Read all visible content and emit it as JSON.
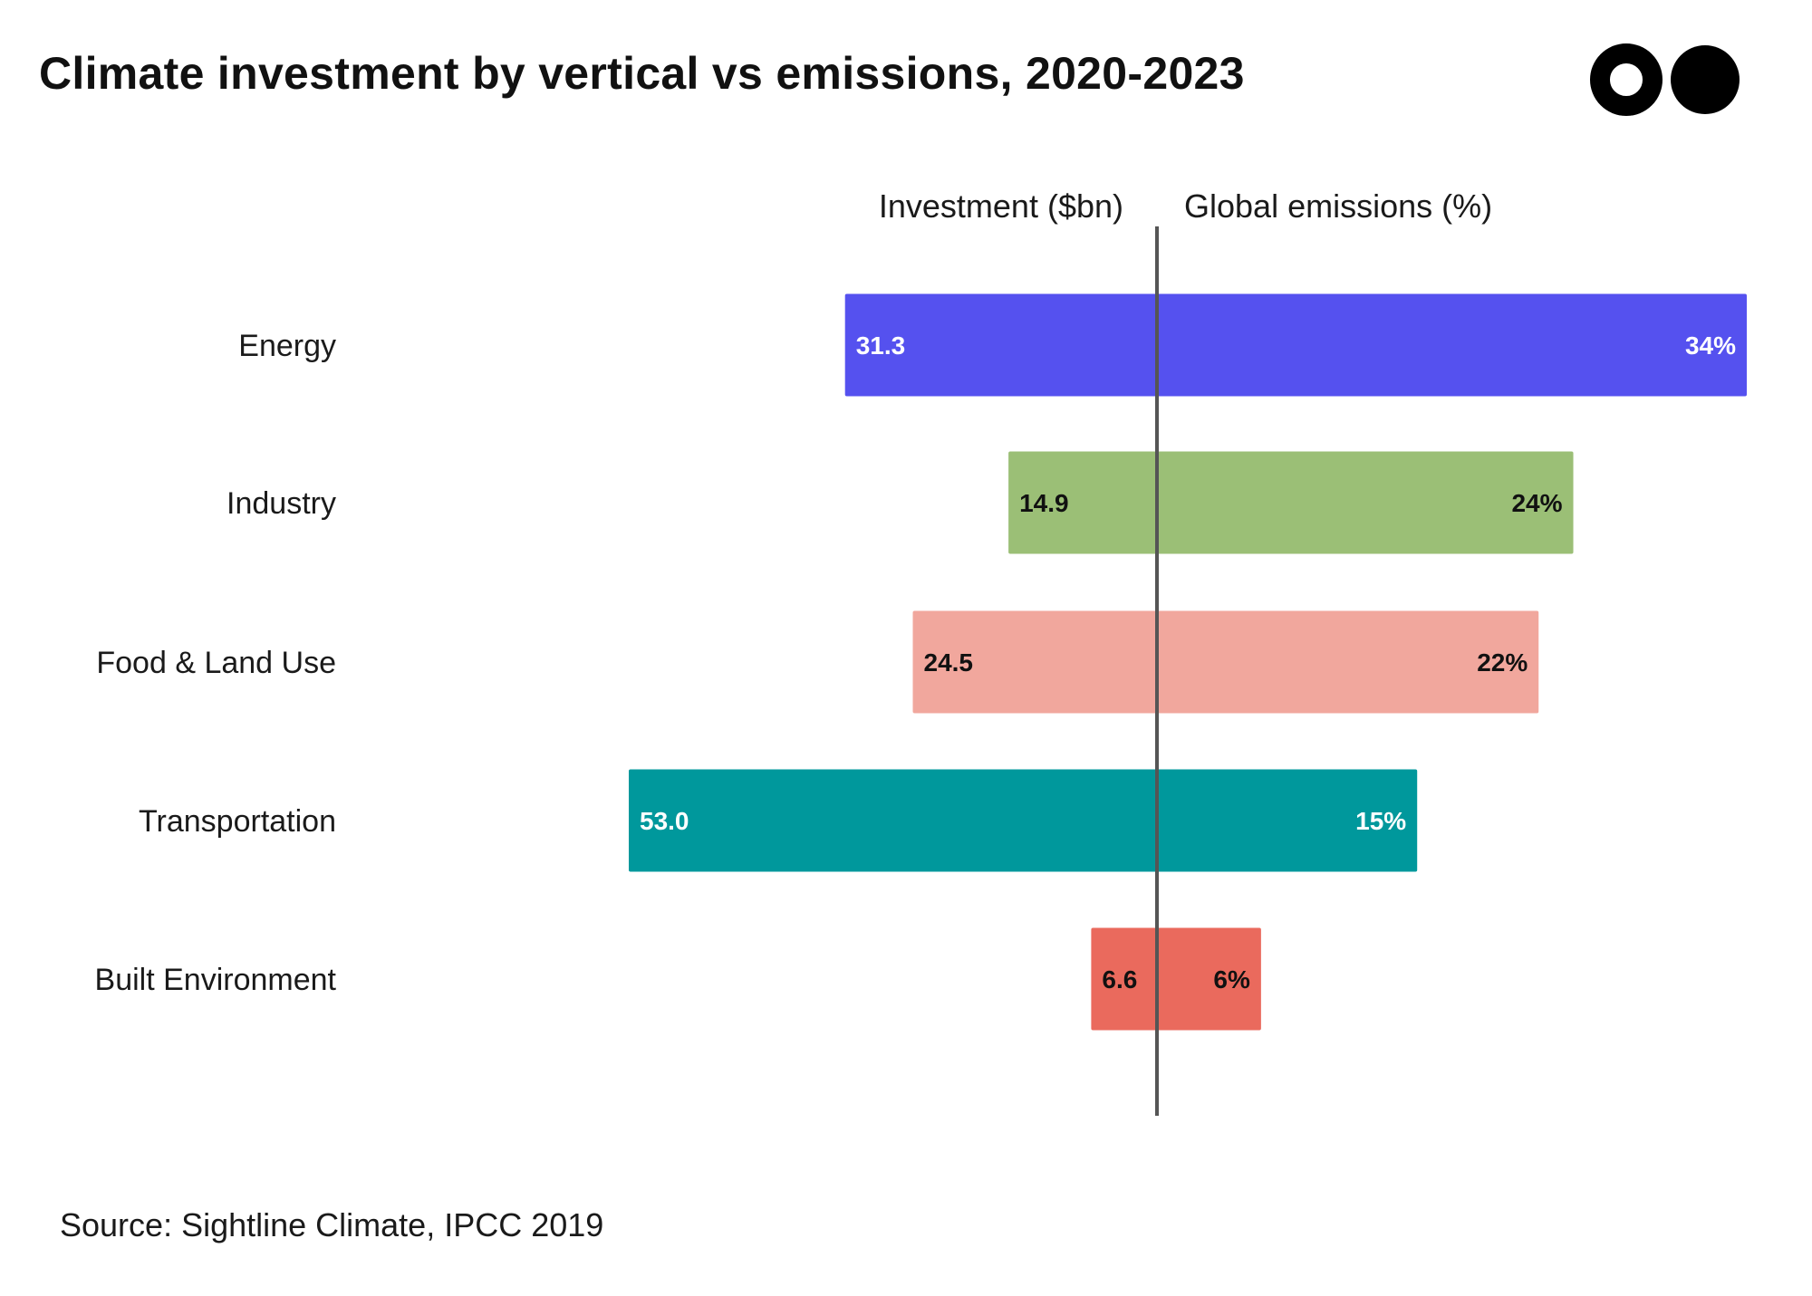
{
  "title": "Climate investment by vertical vs emissions, 2020-2023",
  "source": "Source: Sightline Climate, IPCC 2019",
  "logo": {
    "icon": "two-circles-logo-icon",
    "color": "#000000"
  },
  "chart_data": {
    "type": "bar",
    "orientation": "horizontal-butterfly",
    "left_axis_label": "Investment ($bn)",
    "right_axis_label": "Global emissions (%)",
    "categories": [
      "Energy",
      "Industry",
      "Food & Land Use",
      "Transportation",
      "Built Environment"
    ],
    "series": [
      {
        "name": "Investment ($bn)",
        "side": "left",
        "values": [
          31.3,
          14.9,
          24.5,
          53.0,
          6.6
        ],
        "labels": [
          "31.3",
          "14.9",
          "24.5",
          "53.0",
          "6.6"
        ]
      },
      {
        "name": "Global emissions (%)",
        "side": "right",
        "values": [
          34,
          24,
          22,
          15,
          6
        ],
        "labels": [
          "34%",
          "24%",
          "22%",
          "15%",
          "6%"
        ]
      }
    ],
    "colors": [
      "#5551ef",
      "#9bbf76",
      "#f1a79d",
      "#00989c",
      "#ea6a5d"
    ],
    "label_colors": [
      "#ffffff",
      "#111111",
      "#111111",
      "#ffffff",
      "#111111"
    ],
    "grid": false
  }
}
